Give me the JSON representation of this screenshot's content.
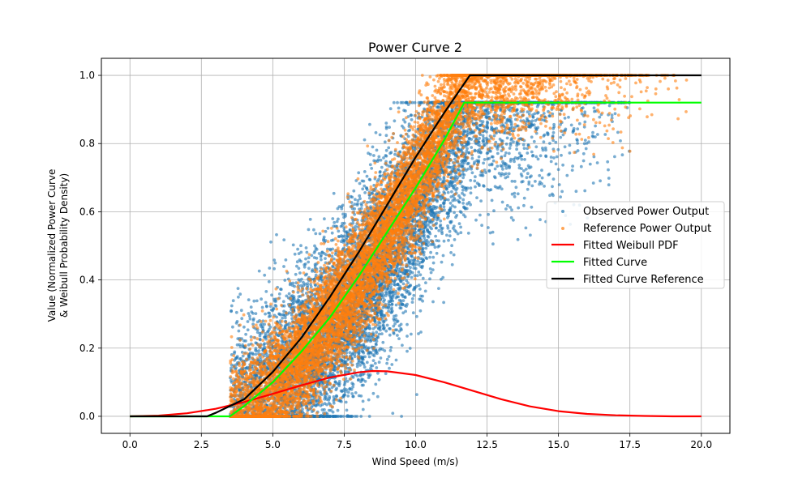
{
  "chart_data": {
    "type": "scatter",
    "title": "Power Curve 2",
    "xlabel": "Wind Speed (m/s)",
    "ylabel_lines": [
      "Value (Normalized Power Curve",
      "& Weibull Probability Density)"
    ],
    "xlim": [
      -1.0,
      21.0
    ],
    "ylim": [
      -0.05,
      1.05
    ],
    "xticks": [
      0.0,
      2.5,
      5.0,
      7.5,
      10.0,
      12.5,
      15.0,
      17.5,
      20.0
    ],
    "xtick_labels": [
      "0.0",
      "2.5",
      "5.0",
      "7.5",
      "10.0",
      "12.5",
      "15.0",
      "17.5",
      "20.0"
    ],
    "yticks": [
      0.0,
      0.2,
      0.4,
      0.6,
      0.8,
      1.0
    ],
    "ytick_labels": [
      "0.0",
      "0.2",
      "0.4",
      "0.6",
      "0.8",
      "1.0"
    ],
    "grid": true,
    "legend_position": "center-right",
    "colors": {
      "observed": "#1f77b4",
      "reference": "#ff7f0e",
      "weibull": "#ff0000",
      "fitted": "#00ff00",
      "fitted_reference": "#000000"
    },
    "series": [
      {
        "name": "Observed Power Output",
        "kind": "scatter",
        "color": "#1f77b4",
        "approx_points": 10000,
        "description_values": {
          "x_range": [
            3.5,
            17.5
          ],
          "cut_in": 3.5,
          "rated_speed": 12.0,
          "rated_value": 0.92,
          "spread_y": 0.14
        }
      },
      {
        "name": "Reference Power Output",
        "kind": "scatter",
        "color": "#ff7f0e",
        "approx_points": 10000,
        "description_values": {
          "x_range": [
            3.5,
            19.5
          ],
          "cut_in": 3.5,
          "rated_speed": 11.9,
          "rated_value": 1.0,
          "spread_y": 0.09
        }
      },
      {
        "name": "Fitted Weibull PDF",
        "kind": "line",
        "color": "#ff0000",
        "x": [
          0,
          1,
          2,
          3,
          4,
          5,
          6,
          7,
          8,
          8.5,
          9,
          10,
          11,
          12,
          13,
          14,
          15,
          16,
          17,
          18,
          19,
          20
        ],
        "y": [
          0.0,
          0.002,
          0.009,
          0.022,
          0.042,
          0.066,
          0.091,
          0.114,
          0.129,
          0.133,
          0.132,
          0.121,
          0.1,
          0.075,
          0.05,
          0.029,
          0.015,
          0.007,
          0.003,
          0.001,
          0.0,
          0.0
        ]
      },
      {
        "name": "Fitted Curve",
        "kind": "line",
        "color": "#00ff00",
        "x": [
          0,
          3.5,
          4,
          5,
          6,
          7,
          8,
          9,
          10,
          11,
          11.7,
          12,
          20
        ],
        "y": [
          0.0,
          0.0,
          0.03,
          0.1,
          0.19,
          0.29,
          0.41,
          0.54,
          0.67,
          0.81,
          0.92,
          0.92,
          0.92
        ]
      },
      {
        "name": "Fitted Curve Reference",
        "kind": "line",
        "color": "#000000",
        "x": [
          0,
          2.7,
          3,
          4,
          5,
          6,
          7,
          8,
          9,
          10,
          11,
          11.9,
          12,
          20
        ],
        "y": [
          0.0,
          0.0,
          0.01,
          0.05,
          0.13,
          0.23,
          0.35,
          0.48,
          0.62,
          0.76,
          0.89,
          1.0,
          1.0,
          1.0
        ]
      }
    ]
  }
}
